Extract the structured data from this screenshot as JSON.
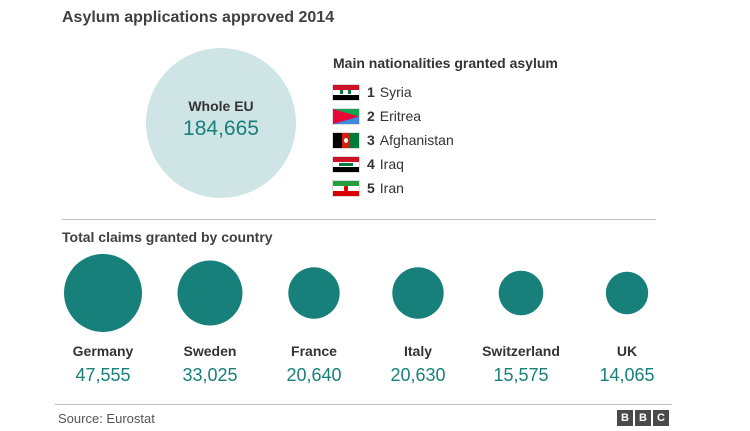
{
  "title": "Asylum applications approved 2014",
  "whole_eu": {
    "label": "Whole EU",
    "value": "184,665"
  },
  "nationalities": {
    "title": "Main nationalities granted asylum",
    "items": [
      {
        "rank": "1",
        "name": "Syria",
        "flag": "syria-flag-icon"
      },
      {
        "rank": "2",
        "name": "Eritrea",
        "flag": "eritrea-flag-icon"
      },
      {
        "rank": "3",
        "name": "Afghanistan",
        "flag": "afghanistan-flag-icon"
      },
      {
        "rank": "4",
        "name": "Iraq",
        "flag": "iraq-flag-icon"
      },
      {
        "rank": "5",
        "name": "Iran",
        "flag": "iran-flag-icon"
      }
    ]
  },
  "chart_data": {
    "type": "bubble",
    "title": "Total claims granted by country",
    "categories": [
      "Germany",
      "Sweden",
      "France",
      "Italy",
      "Switzerland",
      "UK"
    ],
    "values": [
      47555,
      33025,
      20640,
      20630,
      15575,
      14065
    ],
    "value_labels": [
      "47,555",
      "33,025",
      "20,640",
      "20,630",
      "15,575",
      "14,065"
    ],
    "colors": {
      "bubble": "#17807a",
      "value_text": "#17807a"
    }
  },
  "footer": {
    "source": "Source: Eurostat",
    "logo": [
      "B",
      "B",
      "C"
    ]
  }
}
